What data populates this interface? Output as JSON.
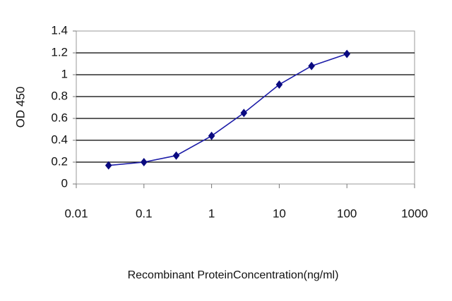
{
  "chart_data": {
    "type": "line",
    "x_label": "Recombinant ProteinConcentration(ng/ml)",
    "y_label": "OD 450",
    "x": [
      0.03,
      0.1,
      0.3,
      1,
      3,
      10,
      30,
      100
    ],
    "values": [
      0.17,
      0.2,
      0.26,
      0.44,
      0.65,
      0.91,
      1.08,
      1.19
    ],
    "color": "#1c1ca8",
    "marker_color": "#0a0a80",
    "xscale": "log",
    "xlim": [
      0.01,
      1000
    ],
    "xticks": [
      0.01,
      0.1,
      1,
      10,
      100,
      1000
    ],
    "ylim": [
      0,
      1.4
    ],
    "yticks": [
      0,
      0.2,
      0.4,
      0.6,
      0.8,
      1,
      1.2,
      1.4
    ],
    "grid": true
  }
}
